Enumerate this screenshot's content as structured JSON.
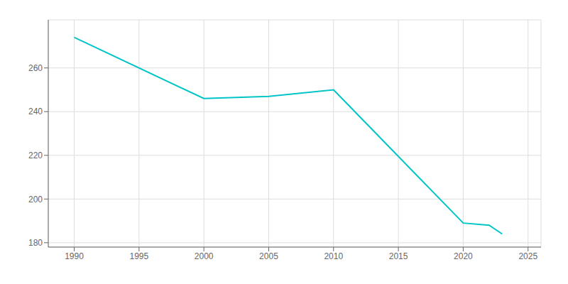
{
  "chart_data": {
    "type": "line",
    "x": [
      1990,
      2000,
      2005,
      2010,
      2020,
      2022,
      2023
    ],
    "values": [
      274,
      246,
      247,
      250,
      189,
      188,
      184
    ],
    "color": "#00C5C8",
    "xlim": [
      1988,
      2026
    ],
    "ylim": [
      178,
      282
    ],
    "xticks": [
      1990,
      1995,
      2000,
      2005,
      2010,
      2015,
      2020,
      2025
    ],
    "yticks": [
      180,
      200,
      220,
      240,
      260
    ],
    "grid": true
  }
}
